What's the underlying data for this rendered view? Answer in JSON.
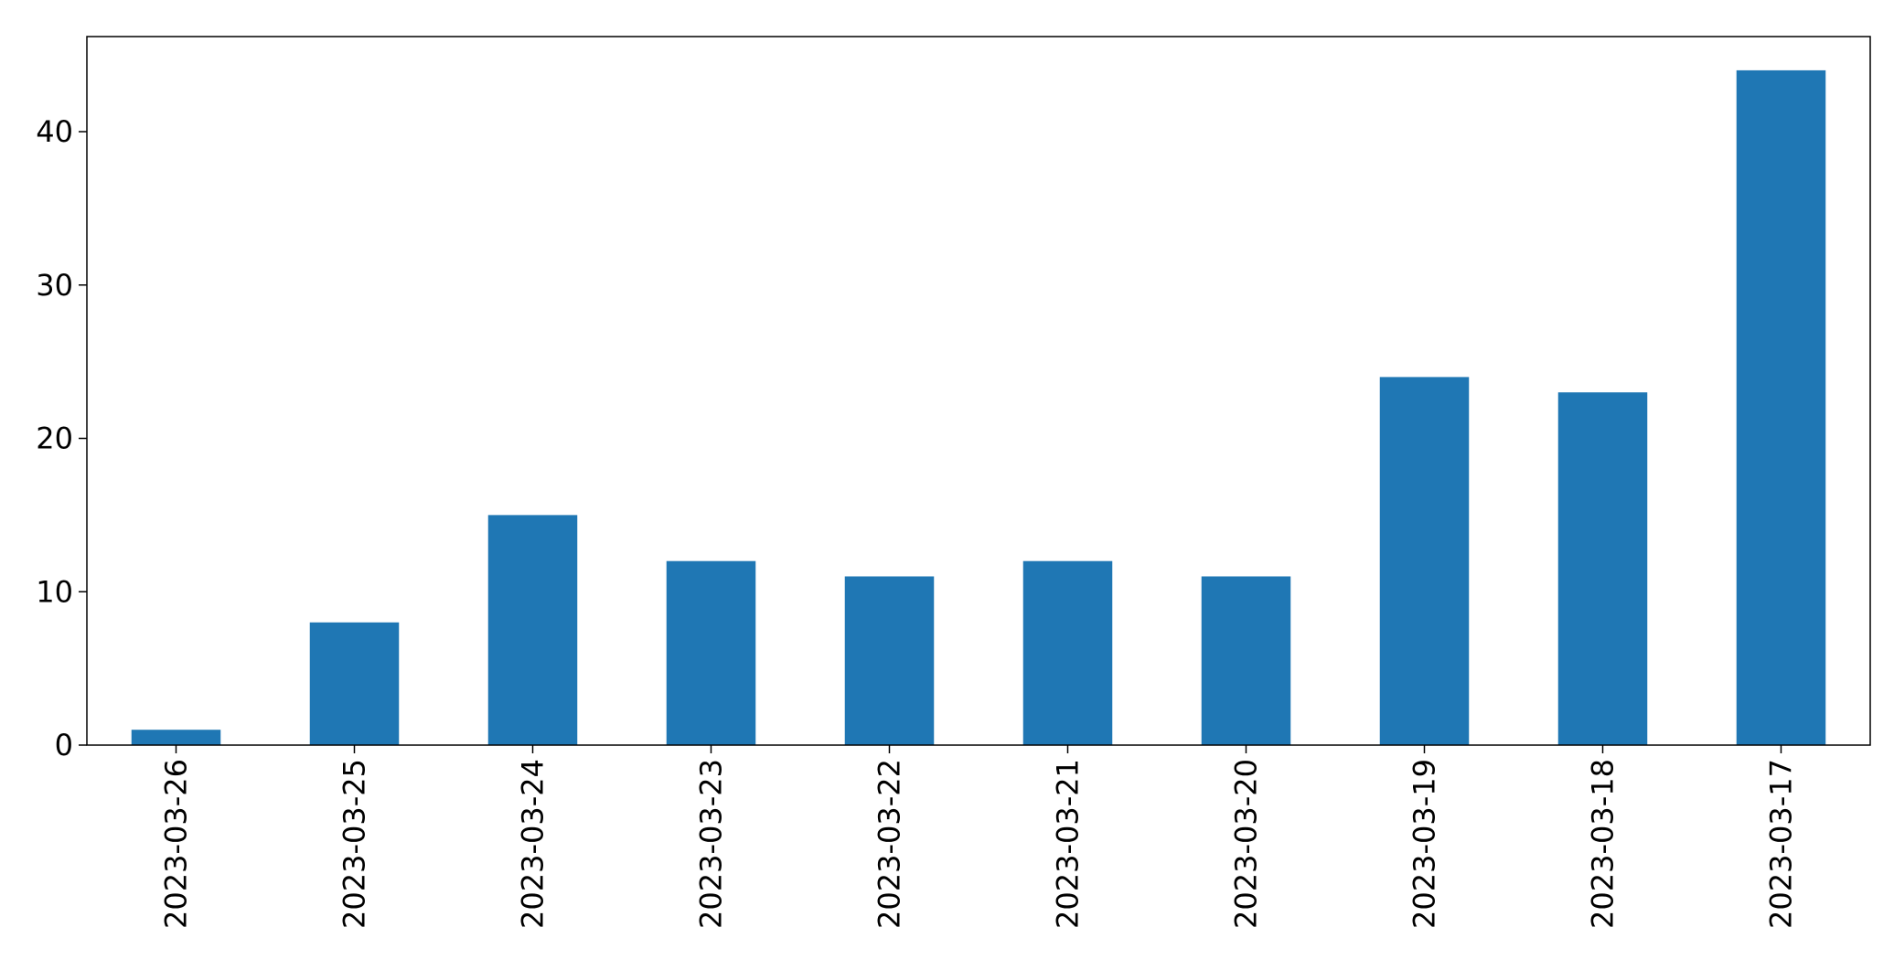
{
  "chart_data": {
    "type": "bar",
    "categories": [
      "2023-03-26",
      "2023-03-25",
      "2023-03-24",
      "2023-03-23",
      "2023-03-22",
      "2023-03-21",
      "2023-03-20",
      "2023-03-19",
      "2023-03-18",
      "2023-03-17"
    ],
    "values": [
      1,
      8,
      15,
      12,
      11,
      12,
      11,
      24,
      23,
      44
    ],
    "title": "",
    "xlabel": "",
    "ylabel": "",
    "ylim": [
      0,
      46.2
    ],
    "yticks": [
      0,
      10,
      20,
      30,
      40
    ],
    "grid": false,
    "legend": "none",
    "bar_color": "#1f77b4"
  }
}
